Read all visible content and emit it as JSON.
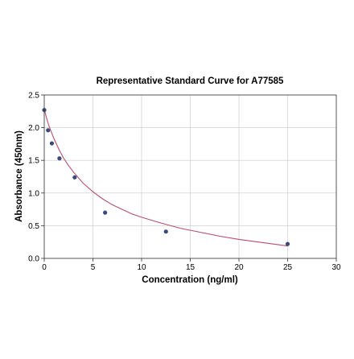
{
  "chart_data": {
    "type": "scatter",
    "title": "Representative Standard Curve for A77585",
    "xlabel": "Concentration (ng/ml)",
    "ylabel": "Absorbance (450nm)",
    "xlim": [
      0,
      30
    ],
    "ylim": [
      0,
      2.5
    ],
    "x_ticks": [
      0,
      5,
      10,
      15,
      20,
      25,
      30
    ],
    "x_tick_labels": [
      "0",
      "5",
      "10",
      "15",
      "20",
      "25",
      "30"
    ],
    "y_ticks": [
      0,
      0.5,
      1.0,
      1.5,
      2.0,
      2.5
    ],
    "y_tick_labels": [
      "0.0",
      "0.5",
      "1.0",
      "1.5",
      "2.0",
      "2.5"
    ],
    "grid": true,
    "points": [
      {
        "x": 0,
        "y": 2.27
      },
      {
        "x": 0.39,
        "y": 1.96
      },
      {
        "x": 0.78,
        "y": 1.76
      },
      {
        "x": 1.56,
        "y": 1.53
      },
      {
        "x": 3.125,
        "y": 1.24
      },
      {
        "x": 6.25,
        "y": 0.7
      },
      {
        "x": 12.5,
        "y": 0.41
      },
      {
        "x": 25,
        "y": 0.22
      }
    ],
    "fit_curve": {
      "x": [
        0,
        0.25,
        0.5,
        1,
        1.5,
        2,
        2.5,
        3,
        4,
        5,
        6,
        7,
        8,
        9,
        10,
        12,
        14,
        16,
        18,
        20,
        22,
        25
      ],
      "y": [
        2.28,
        2.14,
        2.02,
        1.83,
        1.67,
        1.53,
        1.42,
        1.32,
        1.15,
        1.02,
        0.91,
        0.82,
        0.75,
        0.68,
        0.63,
        0.54,
        0.46,
        0.4,
        0.34,
        0.29,
        0.25,
        0.19
      ]
    },
    "colors": {
      "points": "#3b4a7a",
      "curve": "#b5506e",
      "grid": "#c8c8c8",
      "axis": "#333333"
    }
  }
}
